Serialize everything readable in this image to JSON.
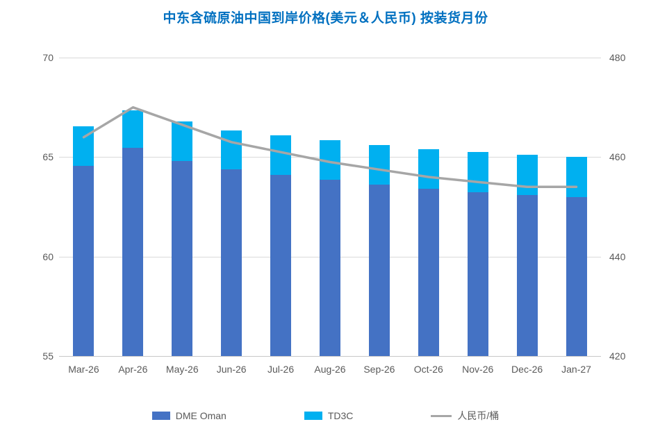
{
  "chart_data": {
    "type": "combo",
    "title": "中东含硫原油中国到岸价格(美元＆人民币) 按装货月份",
    "title_color": "#0070C0",
    "categories": [
      "Mar-26",
      "Apr-26",
      "May-26",
      "Jun-26",
      "Jul-26",
      "Aug-26",
      "Sep-26",
      "Oct-26",
      "Nov-26",
      "Dec-26",
      "Jan-27"
    ],
    "series": [
      {
        "name": "DME Oman",
        "type": "bar",
        "stack": "usd",
        "yaxis": "left",
        "color": "#4472C4",
        "values": [
          64.55,
          65.45,
          64.8,
          64.4,
          64.1,
          63.85,
          63.6,
          63.4,
          63.25,
          63.1,
          63.0
        ]
      },
      {
        "name": "TD3C",
        "type": "bar",
        "stack": "usd",
        "yaxis": "left",
        "color": "#00B0F0",
        "values": [
          2.0,
          1.9,
          2.0,
          1.95,
          2.0,
          2.0,
          2.0,
          2.0,
          2.0,
          2.0,
          2.0
        ]
      },
      {
        "name": "人民币/桶",
        "type": "line",
        "yaxis": "right",
        "color": "#A6A6A6",
        "values": [
          464,
          470,
          466.5,
          463,
          461,
          459,
          457.5,
          456,
          455,
          454,
          454
        ]
      }
    ],
    "left_axis": {
      "min": 55,
      "max": 70,
      "ticks": [
        70,
        65,
        60,
        55
      ]
    },
    "right_axis": {
      "min": 420,
      "max": 480,
      "ticks": [
        480,
        460,
        440,
        420
      ]
    },
    "grid": true,
    "legend_position": "bottom",
    "colors": {
      "gridline": "#D9D9D9",
      "axis_text": "#595959",
      "background": "#FFFFFF"
    }
  }
}
